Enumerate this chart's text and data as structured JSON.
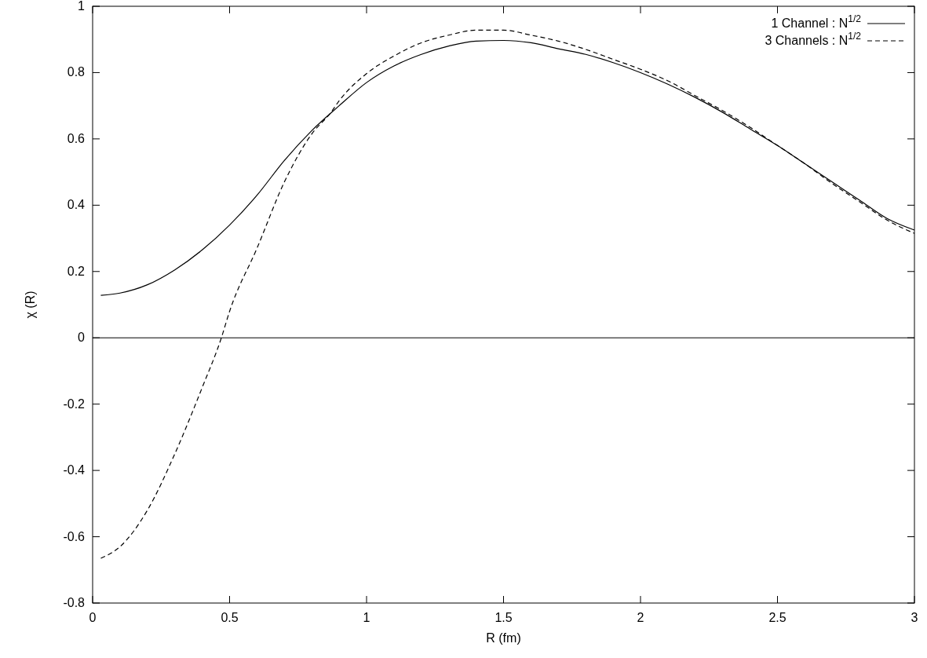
{
  "chart_data": {
    "type": "line",
    "xlabel": "R (fm)",
    "ylabel": "χ (R)",
    "xlim": [
      0,
      3
    ],
    "ylim": [
      -0.8,
      1
    ],
    "xticks": [
      0,
      0.5,
      1,
      1.5,
      2,
      2.5,
      3
    ],
    "yticks": [
      -0.8,
      -0.6,
      -0.4,
      -0.2,
      0,
      0.2,
      0.4,
      0.6,
      0.8,
      1
    ],
    "grid": false,
    "legend": "top right",
    "marker": "none",
    "ref_lines": [
      {
        "axis": "y",
        "value": 0,
        "color": "#000000",
        "line_style": "solid"
      }
    ],
    "series": [
      {
        "name": "1 Channel : N$^{1/2}$",
        "color": "#000000",
        "line_style": "solid",
        "x": [
          0.03,
          0.1,
          0.2,
          0.3,
          0.4,
          0.5,
          0.6,
          0.7,
          0.8,
          0.9,
          1.0,
          1.1,
          1.2,
          1.3,
          1.4,
          1.5,
          1.6,
          1.7,
          1.8,
          1.9,
          2.0,
          2.1,
          2.2,
          2.3,
          2.4,
          2.5,
          2.6,
          2.7,
          2.8,
          2.9,
          3.0
        ],
        "values": [
          0.128,
          0.135,
          0.16,
          0.205,
          0.265,
          0.34,
          0.43,
          0.535,
          0.625,
          0.7,
          0.77,
          0.82,
          0.855,
          0.88,
          0.895,
          0.897,
          0.89,
          0.872,
          0.855,
          0.83,
          0.8,
          0.765,
          0.725,
          0.68,
          0.63,
          0.58,
          0.525,
          0.47,
          0.415,
          0.36,
          0.325
        ]
      },
      {
        "name": "3 Channels : N$^{1/2}$",
        "color": "#000000",
        "line_style": "dashed",
        "x": [
          0.03,
          0.1,
          0.2,
          0.3,
          0.4,
          0.47,
          0.5,
          0.6,
          0.7,
          0.8,
          0.87,
          0.9,
          1.0,
          1.1,
          1.2,
          1.3,
          1.4,
          1.5,
          1.6,
          1.7,
          1.8,
          1.9,
          2.0,
          2.1,
          2.2,
          2.3,
          2.4,
          2.5,
          2.6,
          2.7,
          2.8,
          2.9,
          3.0
        ],
        "values": [
          -0.665,
          -0.63,
          -0.52,
          -0.35,
          -0.15,
          0,
          0.08,
          0.27,
          0.47,
          0.615,
          0.68,
          0.715,
          0.797,
          0.85,
          0.89,
          0.913,
          0.928,
          0.928,
          0.913,
          0.895,
          0.87,
          0.84,
          0.81,
          0.775,
          0.73,
          0.685,
          0.635,
          0.58,
          0.525,
          0.465,
          0.41,
          0.355,
          0.315
        ]
      }
    ]
  }
}
